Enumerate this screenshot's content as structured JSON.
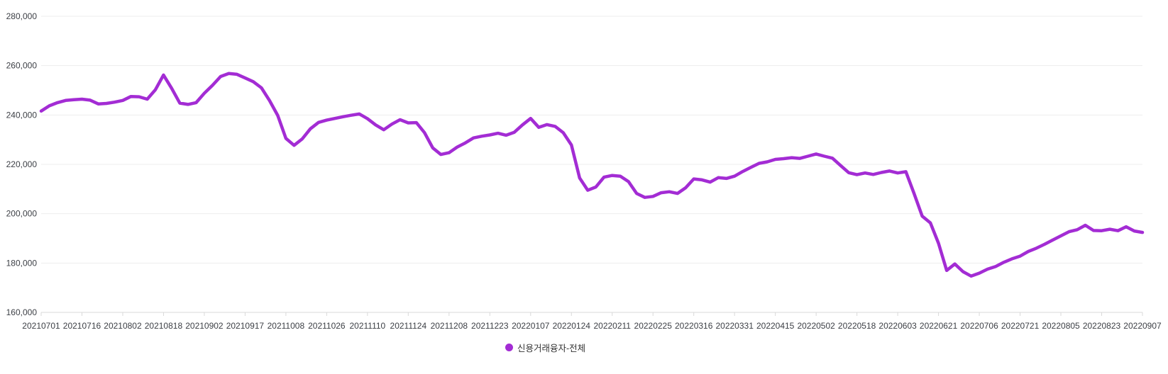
{
  "chart_data": {
    "type": "line",
    "series_name": "신용거래융자-전체",
    "line_color": "#a32cd4",
    "ylim": [
      160000,
      280000
    ],
    "grid": "horizontal",
    "legend_position": "bottom",
    "y_tick_labels": [
      "280,000",
      "260,000",
      "240,000",
      "220,000",
      "200,000",
      "180,000",
      "160,000"
    ],
    "x_tick_labels": [
      "20210701",
      "20210716",
      "20210802",
      "20210818",
      "20210902",
      "20210917",
      "20211008",
      "20211026",
      "20211110",
      "20211124",
      "20211208",
      "20211223",
      "20220107",
      "20220124",
      "20220211",
      "20220225",
      "20220316",
      "20220331",
      "20220415",
      "20220502",
      "20220518",
      "20220603",
      "20220621",
      "20220706",
      "20220721",
      "20220805",
      "20220823",
      "20220907"
    ],
    "samples_per_tick_interval": 5,
    "values": [
      241600,
      243700,
      245000,
      245900,
      246200,
      246400,
      246000,
      244500,
      244700,
      245200,
      245900,
      247500,
      247400,
      246400,
      250200,
      256200,
      250800,
      244800,
      244300,
      245000,
      248800,
      252000,
      255600,
      256800,
      256500,
      255000,
      253500,
      251000,
      245800,
      239800,
      230500,
      227700,
      230300,
      234400,
      237000,
      237900,
      238600,
      239300,
      239900,
      240400,
      238500,
      236000,
      234000,
      236300,
      238100,
      236800,
      236900,
      232800,
      226700,
      224000,
      224700,
      227000,
      228700,
      230700,
      231400,
      231900,
      232600,
      231800,
      233000,
      236000,
      238600,
      235000,
      236100,
      235400,
      232800,
      227800,
      214500,
      209500,
      210800,
      214800,
      215500,
      215200,
      213000,
      208200,
      206600,
      207000,
      208500,
      208900,
      208200,
      210500,
      214100,
      213700,
      212800,
      214600,
      214300,
      215200,
      217100,
      218800,
      220400,
      221000,
      222000,
      222300,
      222700,
      222400,
      223300,
      224200,
      223300,
      222500,
      219500,
      216600,
      215800,
      216500,
      215900,
      216700,
      217300,
      216500,
      217000,
      208200,
      199000,
      196300,
      188000,
      177000,
      179600,
      176500,
      174700,
      175900,
      177500,
      178600,
      180300,
      181700,
      182800,
      184700,
      186000,
      187600,
      189300,
      191000,
      192700,
      193500,
      195300,
      193200,
      193100,
      193700,
      193100,
      194700,
      193000,
      192400
    ]
  },
  "legend": {
    "label": "신용거래융자-전체"
  }
}
